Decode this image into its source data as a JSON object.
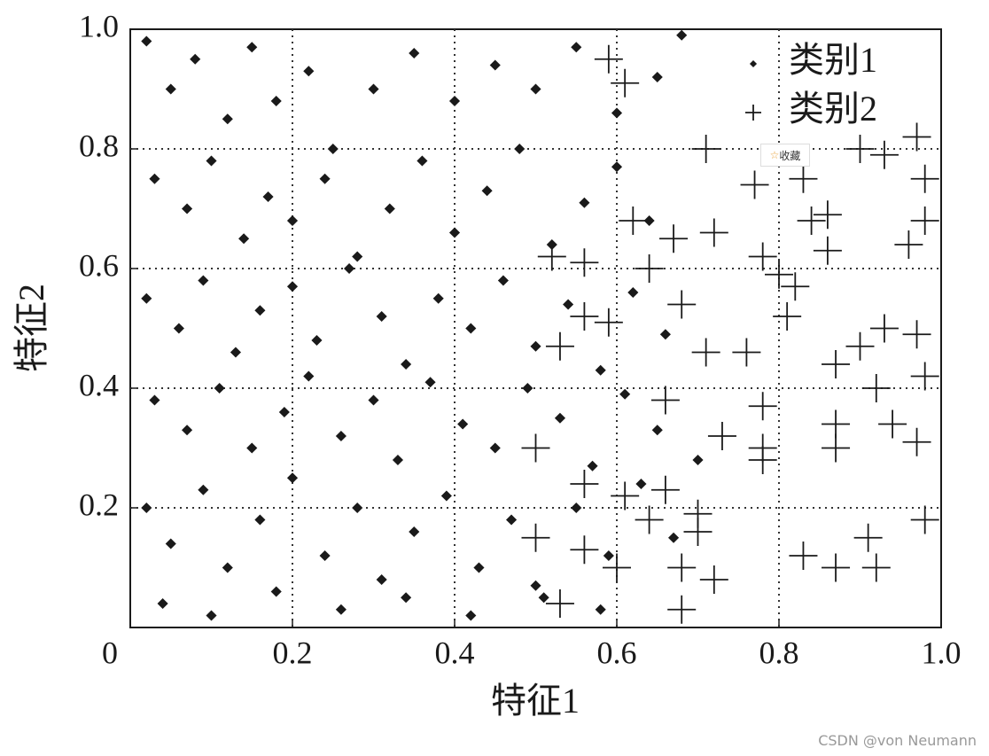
{
  "chart_data": {
    "type": "scatter",
    "xlabel": "特征1",
    "ylabel": "特征2",
    "xlim": [
      0,
      1
    ],
    "ylim": [
      0,
      1
    ],
    "xticks": [
      0,
      0.2,
      0.4,
      0.6,
      0.8,
      {
        "value": 1,
        "label": "1.0"
      }
    ],
    "yticks": [
      0.2,
      0.4,
      0.6,
      0.8,
      {
        "value": 1,
        "label": "1.0"
      }
    ],
    "grid": true,
    "legend": "upper right",
    "series": [
      {
        "name": "类别1",
        "color": "#1a1a1a",
        "marker": "dot",
        "x": [
          0.02,
          0.05,
          0.08,
          0.12,
          0.15,
          0.18,
          0.22,
          0.25,
          0.3,
          0.35,
          0.4,
          0.45,
          0.5,
          0.55,
          0.6,
          0.65,
          0.68,
          0.03,
          0.07,
          0.1,
          0.14,
          0.17,
          0.2,
          0.24,
          0.28,
          0.32,
          0.36,
          0.4,
          0.44,
          0.48,
          0.52,
          0.56,
          0.6,
          0.64,
          0.02,
          0.06,
          0.09,
          0.13,
          0.16,
          0.2,
          0.23,
          0.27,
          0.31,
          0.34,
          0.38,
          0.42,
          0.46,
          0.5,
          0.54,
          0.58,
          0.62,
          0.66,
          0.03,
          0.07,
          0.11,
          0.15,
          0.19,
          0.22,
          0.26,
          0.3,
          0.33,
          0.37,
          0.41,
          0.45,
          0.49,
          0.53,
          0.57,
          0.61,
          0.65,
          0.7,
          0.02,
          0.05,
          0.09,
          0.12,
          0.16,
          0.2,
          0.24,
          0.28,
          0.31,
          0.35,
          0.39,
          0.43,
          0.47,
          0.51,
          0.55,
          0.59,
          0.63,
          0.67,
          0.04,
          0.1,
          0.18,
          0.26,
          0.34,
          0.42,
          0.5,
          0.58
        ],
        "values": [
          0.98,
          0.9,
          0.95,
          0.85,
          0.97,
          0.88,
          0.93,
          0.8,
          0.9,
          0.96,
          0.88,
          0.94,
          0.9,
          0.97,
          0.86,
          0.92,
          0.99,
          0.75,
          0.7,
          0.78,
          0.65,
          0.72,
          0.68,
          0.75,
          0.62,
          0.7,
          0.78,
          0.66,
          0.73,
          0.8,
          0.64,
          0.71,
          0.77,
          0.68,
          0.55,
          0.5,
          0.58,
          0.46,
          0.53,
          0.57,
          0.48,
          0.6,
          0.52,
          0.44,
          0.55,
          0.5,
          0.58,
          0.47,
          0.54,
          0.43,
          0.56,
          0.49,
          0.38,
          0.33,
          0.4,
          0.3,
          0.36,
          0.42,
          0.32,
          0.38,
          0.28,
          0.41,
          0.34,
          0.3,
          0.4,
          0.35,
          0.27,
          0.39,
          0.33,
          0.28,
          0.2,
          0.14,
          0.23,
          0.1,
          0.18,
          0.25,
          0.12,
          0.2,
          0.08,
          0.16,
          0.22,
          0.1,
          0.18,
          0.05,
          0.2,
          0.12,
          0.24,
          0.15,
          0.04,
          0.02,
          0.06,
          0.03,
          0.05,
          0.02,
          0.07,
          0.03
        ]
      },
      {
        "name": "类别2",
        "color": "#1a1a1a",
        "marker": "plus",
        "x": [
          0.59,
          0.61,
          0.71,
          0.9,
          0.93,
          0.97,
          0.98,
          0.77,
          0.83,
          0.84,
          0.86,
          0.72,
          0.78,
          0.8,
          0.82,
          0.86,
          0.96,
          0.98,
          0.56,
          0.64,
          0.56,
          0.59,
          0.68,
          0.81,
          0.53,
          0.71,
          0.76,
          0.87,
          0.9,
          0.93,
          0.97,
          0.92,
          0.98,
          0.66,
          0.73,
          0.78,
          0.78,
          0.78,
          0.87,
          0.87,
          0.94,
          0.97,
          0.5,
          0.56,
          0.61,
          0.66,
          0.64,
          0.7,
          0.7,
          0.5,
          0.56,
          0.6,
          0.68,
          0.72,
          0.53,
          0.68,
          0.83,
          0.87,
          0.91,
          0.92,
          0.98,
          0.52,
          0.62,
          0.67
        ],
        "values": [
          0.95,
          0.91,
          0.8,
          0.8,
          0.79,
          0.82,
          0.75,
          0.74,
          0.75,
          0.68,
          0.69,
          0.66,
          0.62,
          0.59,
          0.57,
          0.63,
          0.64,
          0.68,
          0.61,
          0.6,
          0.52,
          0.51,
          0.54,
          0.52,
          0.47,
          0.46,
          0.46,
          0.44,
          0.47,
          0.5,
          0.49,
          0.4,
          0.42,
          0.38,
          0.32,
          0.37,
          0.3,
          0.28,
          0.34,
          0.3,
          0.34,
          0.31,
          0.3,
          0.24,
          0.22,
          0.23,
          0.18,
          0.19,
          0.16,
          0.15,
          0.13,
          0.1,
          0.1,
          0.08,
          0.04,
          0.03,
          0.12,
          0.1,
          0.15,
          0.1,
          0.18,
          0.62,
          0.68,
          0.65
        ]
      }
    ]
  },
  "overlay": {
    "favorite": "收藏",
    "watermark": "CSDN @von  Neumann"
  }
}
